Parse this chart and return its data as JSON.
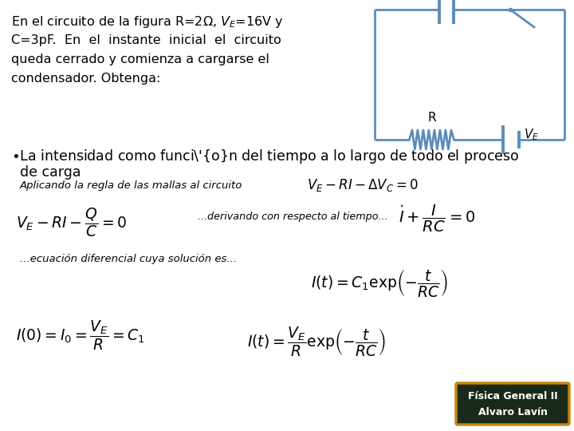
{
  "bg_color": "#ffffff",
  "text_color": "#000000",
  "circuit_color": "#5b8db8",
  "badge_edge_color": "#c8860a",
  "badge_face_color": "#1a2a1a",
  "intro_line1": "En el circuito de la figura R=2$\\Omega$, $V_E$=16V y",
  "intro_line2": "C=3pF.  En  el  instante  inicial  el  circuito",
  "intro_line3": "queda cerrado y comienza a cargarse el",
  "intro_line4": "condensador. Obtenga:",
  "bullet": "\\bullet La intensidad como función del tiempo a lo largo de todo el proceso",
  "bullet2": "de carga",
  "mallas_label": "Aplicando la regla de las mallas al circuito",
  "mallas_eq": "$V_E - RI - \\Delta V_C = 0$",
  "eq1": "$V_E - RI - \\dfrac{Q}{C} = 0$",
  "deriv_label": "...derivando con respecto al tiempo...",
  "eq2": "$\\dot{I} + \\dfrac{I}{RC} = 0$",
  "ode_label": "...ecuación diferencial cuya solución es...",
  "eq3": "$I(t) = C_1 \\exp\\!\\left(-\\dfrac{t}{RC}\\right)$",
  "eq4": "$I(0) = I_0 = \\dfrac{V_E}{R} = C_1$",
  "eq5": "$I(t) = \\dfrac{V_E}{R}\\exp\\!\\left(-\\dfrac{t}{RC}\\right)$",
  "badge_line1": "Física General II",
  "badge_line2": "Alvaro Lavín",
  "fig_w": 7.2,
  "fig_h": 5.4,
  "dpi": 100
}
